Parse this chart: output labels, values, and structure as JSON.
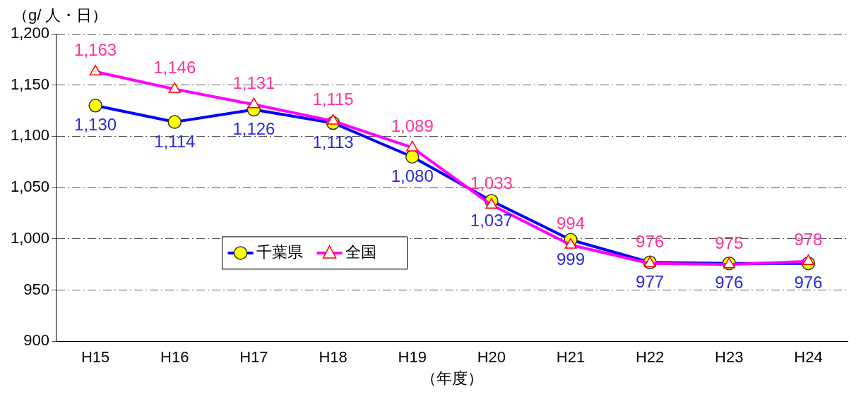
{
  "chart_data": {
    "type": "line",
    "ylabel": "（g/ 人・日）",
    "xlabel": "（年度）",
    "categories": [
      "H15",
      "H16",
      "H17",
      "H18",
      "H19",
      "H20",
      "H21",
      "H22",
      "H23",
      "H24"
    ],
    "series": [
      {
        "name": "千葉県",
        "color": "#0000ff",
        "marker": "circle",
        "values": [
          1130,
          1114,
          1126,
          1113,
          1080,
          1037,
          999,
          977,
          976,
          976
        ],
        "value_labels": [
          "1,130",
          "1,114",
          "1,126",
          "1,113",
          "1,080",
          "1,037",
          "999",
          "977",
          "976",
          "976"
        ]
      },
      {
        "name": "全国",
        "color": "#ff00ff",
        "marker": "triangle",
        "values": [
          1163,
          1146,
          1131,
          1115,
          1089,
          1033,
          994,
          976,
          975,
          978
        ],
        "value_labels": [
          "1,163",
          "1,146",
          "1,131",
          "1,115",
          "1,089",
          "1,033",
          "994",
          "976",
          "975",
          "978"
        ]
      }
    ],
    "ylim": [
      900,
      1200
    ],
    "yticks": [
      {
        "value": 900,
        "label": "900"
      },
      {
        "value": 950,
        "label": "950"
      },
      {
        "value": 1000,
        "label": "1,000"
      },
      {
        "value": 1050,
        "label": "1,050"
      },
      {
        "value": 1100,
        "label": "1,100"
      },
      {
        "value": 1150,
        "label": "1,150"
      },
      {
        "value": 1200,
        "label": "1,200"
      }
    ],
    "grid": "y",
    "legend": "bottom left",
    "line_style": "solid"
  }
}
